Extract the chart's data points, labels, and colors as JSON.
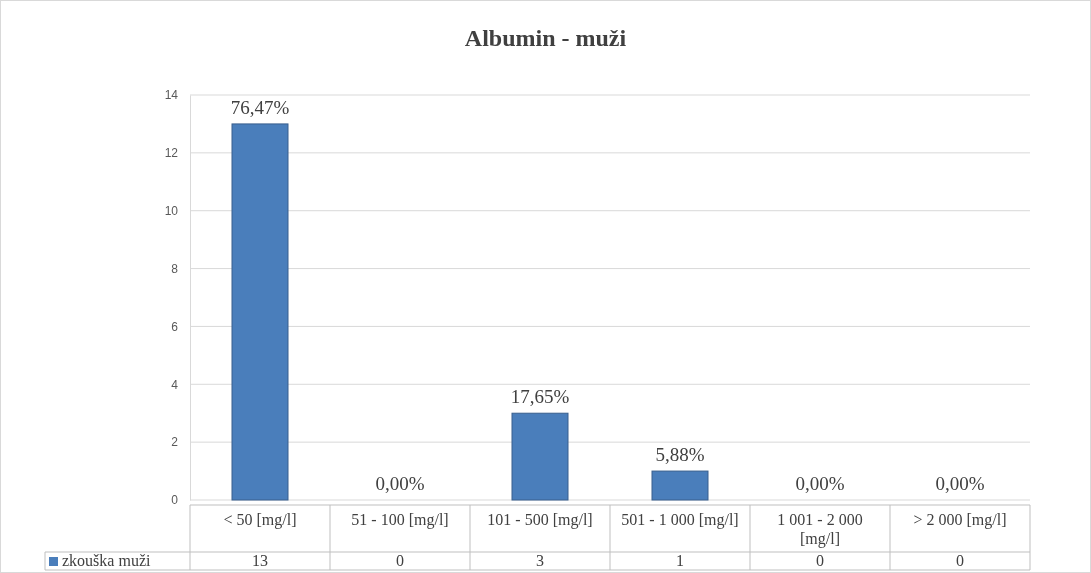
{
  "chart_data": {
    "type": "bar",
    "title": "Albumin - muži",
    "categories": [
      "< 50 [mg/l]",
      "51 - 100 [mg/l]",
      "101 - 500 [mg/l]",
      "501 - 1 000 [mg/l]",
      "1 001 - 2 000 [mg/l]",
      "> 2 000 [mg/l]"
    ],
    "series": [
      {
        "name": "zkouška muži",
        "color": "#4a7ebb",
        "values": [
          13,
          0,
          3,
          1,
          0,
          0
        ]
      }
    ],
    "annotations": [
      {
        "text": "76,47%",
        "x": "< 50 [mg/l]",
        "y": 13
      },
      {
        "text": "0,00%",
        "x": "51 - 100 [mg/l]",
        "y": 0
      },
      {
        "text": "17,65%",
        "x": "101 - 500 [mg/l]",
        "y": 3
      },
      {
        "text": "5,88%",
        "x": "501 - 1 000 [mg/l]",
        "y": 1
      },
      {
        "text": "0,00%",
        "x": "1 001 - 2 000 [mg/l]",
        "y": 0
      },
      {
        "text": "0,00%",
        "x": "> 2 000 [mg/l]",
        "y": 0
      }
    ],
    "ylim": [
      0,
      14
    ],
    "yticks": [
      0,
      2,
      4,
      6,
      8,
      10,
      12,
      14
    ],
    "grid": "y",
    "legend": "bottom",
    "data_labels": true
  }
}
